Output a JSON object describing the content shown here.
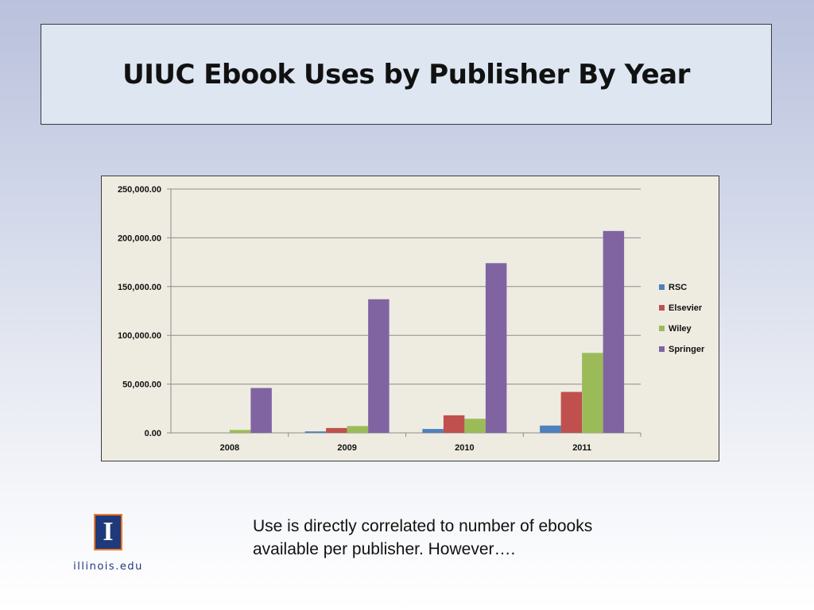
{
  "slide": {
    "title": "UIUC Ebook Uses by Publisher By Year",
    "caption_lines": [
      "Use is directly correlated to number of ebooks",
      "available per publisher.  However…."
    ],
    "logo": {
      "letter": "I",
      "text": "illinois.edu",
      "icon": "university-logo-icon"
    }
  },
  "chart_data": {
    "type": "bar",
    "categories": [
      "2008",
      "2009",
      "2010",
      "2011"
    ],
    "series": [
      {
        "name": "RSC",
        "values": [
          0,
          1500,
          4000,
          7500
        ],
        "color": "#4f81bd"
      },
      {
        "name": "Elsevier",
        "values": [
          0,
          5000,
          18000,
          42000
        ],
        "color": "#c0504d"
      },
      {
        "name": "Wiley",
        "values": [
          3000,
          7000,
          14500,
          82000
        ],
        "color": "#9bbb59"
      },
      {
        "name": "Springer",
        "values": [
          46000,
          137000,
          174000,
          207000
        ],
        "color": "#8064a2"
      }
    ],
    "ylim": [
      0,
      250000
    ],
    "yticks": [
      0,
      50000,
      100000,
      150000,
      200000,
      250000
    ],
    "ytick_labels": [
      "0.00",
      "50,000.00",
      "100,000.00",
      "150,000.00",
      "200,000.00",
      "250,000.00"
    ],
    "grid": true,
    "legend": "right",
    "title": "",
    "xlabel": "",
    "ylabel": ""
  }
}
